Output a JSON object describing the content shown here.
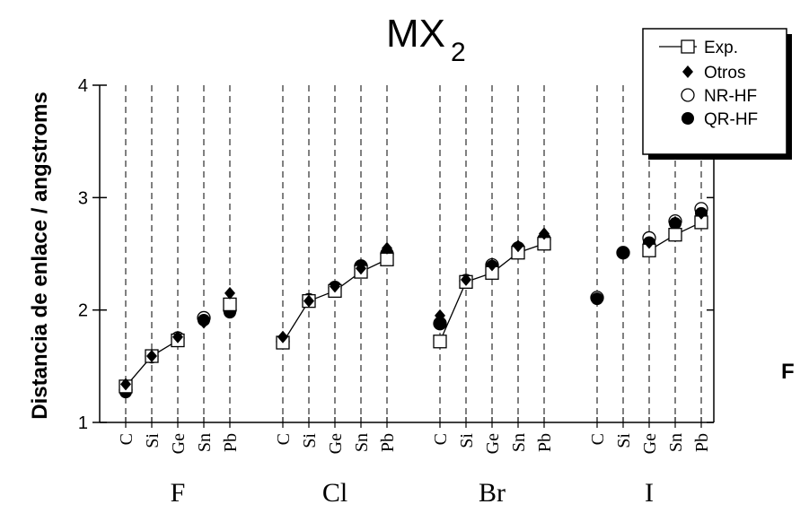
{
  "chart_data": {
    "type": "scatter",
    "title": "MX",
    "title_subscript": "2",
    "ylabel": "Distancia de enlace / angstroms",
    "ylim": [
      1,
      4
    ],
    "yticks": [
      "1",
      "2",
      "3",
      "4"
    ],
    "grid": "vertical dashed lines at each category",
    "groups": [
      {
        "label": "F",
        "categories": [
          "C",
          "Si",
          "Ge",
          "Sn",
          "Pb"
        ]
      },
      {
        "label": "Cl",
        "categories": [
          "C",
          "Si",
          "Ge",
          "Sn",
          "Pb"
        ]
      },
      {
        "label": "Br",
        "categories": [
          "C",
          "Si",
          "Ge",
          "Sn",
          "Pb"
        ]
      },
      {
        "label": "I",
        "categories": [
          "C",
          "Si",
          "Ge",
          "Sn",
          "Pb"
        ]
      }
    ],
    "legend_position": "top-right",
    "series": [
      {
        "name": "Exp.",
        "marker": "open-square-line",
        "values": [
          1.32,
          1.59,
          1.73,
          null,
          2.05,
          1.71,
          2.08,
          2.17,
          2.34,
          2.45,
          1.72,
          2.25,
          2.33,
          2.51,
          2.59,
          null,
          null,
          2.53,
          2.67,
          2.78
        ]
      },
      {
        "name": "Otros",
        "marker": "filled-diamond",
        "values": [
          1.34,
          1.59,
          1.76,
          1.89,
          2.15,
          1.76,
          2.08,
          2.21,
          2.37,
          2.55,
          1.95,
          2.27,
          2.4,
          2.57,
          2.68,
          null,
          null,
          2.6,
          2.78,
          2.86
        ]
      },
      {
        "name": "NR-HF",
        "marker": "open-circle",
        "values": [
          1.29,
          1.59,
          1.75,
          1.93,
          2.0,
          1.72,
          2.09,
          2.2,
          2.39,
          2.5,
          1.88,
          2.26,
          2.4,
          2.55,
          2.63,
          2.11,
          2.51,
          2.64,
          2.79,
          2.9
        ]
      },
      {
        "name": "QR-HF",
        "marker": "filled-circle",
        "values": [
          1.27,
          1.58,
          1.74,
          1.91,
          1.98,
          1.71,
          2.08,
          2.2,
          2.39,
          2.5,
          1.88,
          2.26,
          2.39,
          2.55,
          2.63,
          2.1,
          2.51,
          2.6,
          2.77,
          2.86
        ]
      }
    ],
    "annotation": "F"
  }
}
